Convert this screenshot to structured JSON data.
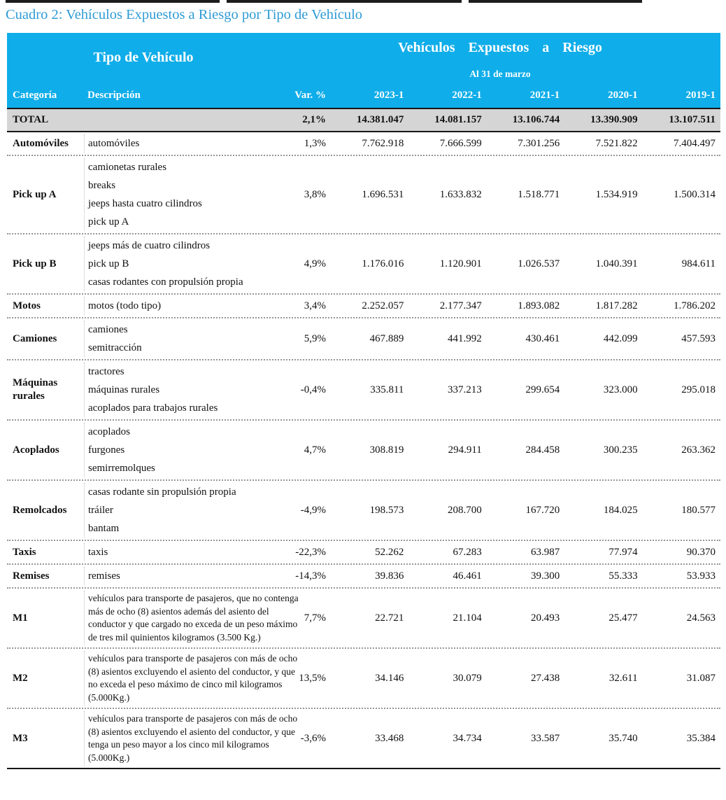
{
  "caption": "Cuadro 2: Vehículos Expuestos a Riesgo por Tipo de Vehículo",
  "colors": {
    "header_background": "#0fade9",
    "caption_blue": "#2e9bd5",
    "total_row_gray": "#d5d5d5",
    "header_text": "#ffffff"
  },
  "table": {
    "header": {
      "left_title": "Tipo de Vehículo",
      "right_title": "Vehículos Expuestos a Riesgo",
      "subtitle": "Al 31 de marzo",
      "columns": [
        "Categoría",
        "Descripción",
        "Var. %",
        "2023-1",
        "2022-1",
        "2021-1",
        "2020-1",
        "2019-1"
      ]
    },
    "total_row": {
      "label": "TOTAL",
      "var": "2,1%",
      "values": [
        "14.381.047",
        "14.081.157",
        "13.106.744",
        "13.390.909",
        "13.107.511"
      ]
    },
    "rows": [
      {
        "category": "Automóviles",
        "descriptions": [
          "automóviles"
        ],
        "var": "1,3%",
        "values": [
          "7.762.918",
          "7.666.599",
          "7.301.256",
          "7.521.822",
          "7.404.497"
        ]
      },
      {
        "category": "Pick up A",
        "descriptions": [
          "camionetas rurales",
          "breaks",
          "jeeps hasta cuatro cilindros",
          "pick up A"
        ],
        "var": "3,8%",
        "values": [
          "1.696.531",
          "1.633.832",
          "1.518.771",
          "1.534.919",
          "1.500.314"
        ]
      },
      {
        "category": "Pick up B",
        "descriptions": [
          "jeeps más de cuatro cilindros",
          "pick up B",
          "casas rodantes con propulsión propia"
        ],
        "var": "4,9%",
        "values": [
          "1.176.016",
          "1.120.901",
          "1.026.537",
          "1.040.391",
          "984.611"
        ]
      },
      {
        "category": "Motos",
        "descriptions": [
          "motos (todo tipo)"
        ],
        "var": "3,4%",
        "values": [
          "2.252.057",
          "2.177.347",
          "1.893.082",
          "1.817.282",
          "1.786.202"
        ]
      },
      {
        "category": "Camiones",
        "descriptions": [
          "camiones",
          "semitracción"
        ],
        "var": "5,9%",
        "values": [
          "467.889",
          "441.992",
          "430.461",
          "442.099",
          "457.593"
        ]
      },
      {
        "category": "Máquinas rurales",
        "descriptions": [
          "tractores",
          "máquinas rurales",
          "acoplados para trabajos rurales"
        ],
        "var": "-0,4%",
        "values": [
          "335.811",
          "337.213",
          "299.654",
          "323.000",
          "295.018"
        ]
      },
      {
        "category": "Acoplados",
        "descriptions": [
          "acoplados",
          "furgones",
          "semirremolques"
        ],
        "var": "4,7%",
        "values": [
          "308.819",
          "294.911",
          "284.458",
          "300.235",
          "263.362"
        ]
      },
      {
        "category": "Remolcados",
        "descriptions": [
          "casas rodante sin propulsión propia",
          "tráiler",
          "bantam"
        ],
        "var": "-4,9%",
        "values": [
          "198.573",
          "208.700",
          "167.720",
          "184.025",
          "180.577"
        ]
      },
      {
        "category": "Taxis",
        "descriptions": [
          "taxis"
        ],
        "var": "-22,3%",
        "values": [
          "52.262",
          "67.283",
          "63.987",
          "77.974",
          "90.370"
        ]
      },
      {
        "category": "Remises",
        "descriptions": [
          "remises"
        ],
        "var": "-14,3%",
        "values": [
          "39.836",
          "46.461",
          "39.300",
          "55.333",
          "53.933"
        ]
      },
      {
        "category": "M1",
        "descriptions": [
          "vehículos para transporte de pasajeros, que no contenga más de ocho (8) asientos además del asiento del conductor y que cargado no exceda de un peso máximo de tres mil quinientos kilogramos (3.500 Kg.)"
        ],
        "var": "7,7%",
        "values": [
          "22.721",
          "21.104",
          "20.493",
          "25.477",
          "24.563"
        ]
      },
      {
        "category": "M2",
        "descriptions": [
          "vehículos para transporte de pasajeros con más de ocho (8) asientos excluyendo el asiento del conductor, y que no exceda el peso máximo de cinco mil kilogramos (5.000Kg.)"
        ],
        "var": "13,5%",
        "values": [
          "34.146",
          "30.079",
          "27.438",
          "32.611",
          "31.087"
        ]
      },
      {
        "category": "M3",
        "descriptions": [
          "vehículos para transporte de pasajeros con más de ocho (8) asientos excluyendo el asiento del conductor, y que tenga un peso mayor a los cinco mil kilogramos (5.000Kg.)"
        ],
        "var": "-3,6%",
        "values": [
          "33.468",
          "34.734",
          "33.587",
          "35.740",
          "35.384"
        ]
      }
    ]
  }
}
